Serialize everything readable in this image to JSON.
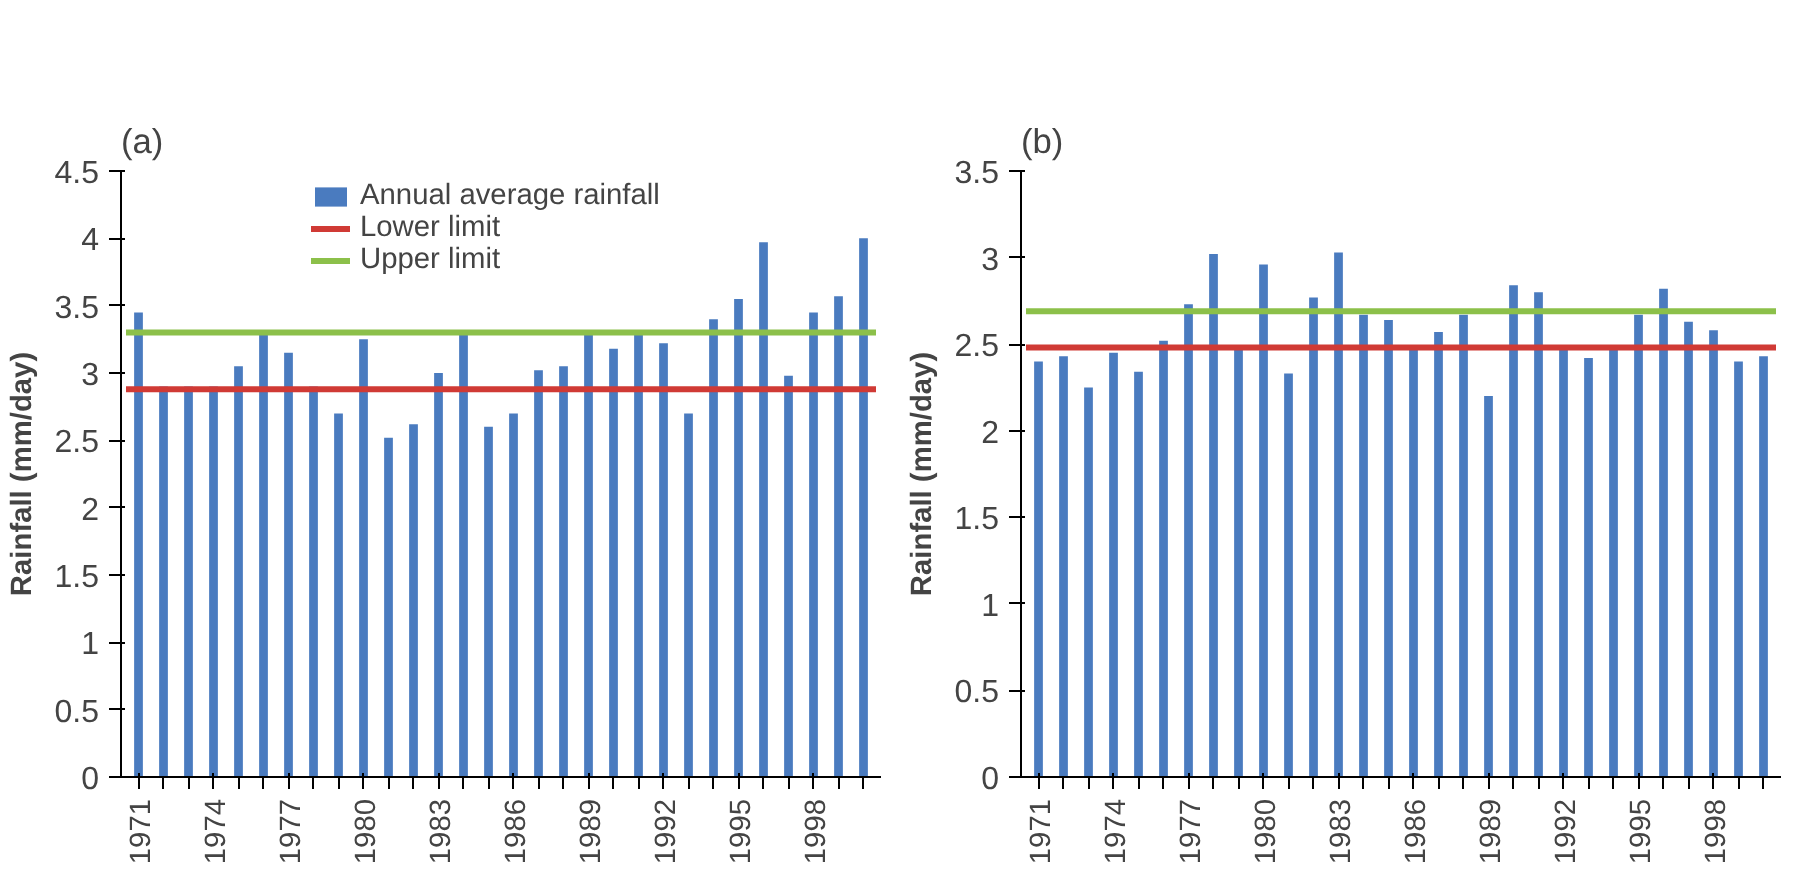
{
  "chart_data": [
    {
      "type": "bar",
      "title": "(a)",
      "ylabel": "Rainfall (mm/day)",
      "categories": [
        "1971",
        null,
        null,
        "1974",
        null,
        null,
        "1977",
        null,
        null,
        "1980",
        null,
        null,
        "1983",
        null,
        null,
        "1986",
        null,
        null,
        "1989",
        null,
        null,
        "1992",
        null,
        null,
        "1995",
        null,
        null,
        "1998",
        null,
        null
      ],
      "series": [
        {
          "name": "Annual average rainfall",
          "color": "#4a7bbf",
          "values": [
            3.45,
            2.9,
            2.9,
            2.9,
            3.05,
            3.3,
            3.15,
            2.9,
            2.7,
            3.25,
            2.52,
            2.62,
            3.0,
            3.3,
            2.6,
            2.7,
            3.02,
            3.05,
            3.3,
            3.18,
            3.3,
            3.22,
            2.7,
            3.4,
            3.55,
            3.97,
            2.98,
            3.45,
            3.57,
            4.0
          ]
        }
      ],
      "ref_lines": [
        {
          "axis": "y",
          "value": 2.88,
          "label": "Lower limit",
          "color": "#d03a35"
        },
        {
          "axis": "y",
          "value": 3.3,
          "label": "Upper limit",
          "color": "#8cc04a"
        }
      ],
      "ylim": [
        0,
        4.5
      ],
      "yticks": [
        0,
        0.5,
        1,
        1.5,
        2,
        2.5,
        3,
        3.5,
        4,
        4.5
      ],
      "grid": false,
      "legend": "top right"
    },
    {
      "type": "bar",
      "title": "(b)",
      "ylabel": "Rainfall (mm/day)",
      "categories": [
        "1971",
        null,
        null,
        "1974",
        null,
        null,
        "1977",
        null,
        null,
        "1980",
        null,
        null,
        "1983",
        null,
        null,
        "1986",
        null,
        null,
        "1989",
        null,
        null,
        "1992",
        null,
        null,
        "1995",
        null,
        null,
        "1998",
        null,
        null
      ],
      "series": [
        {
          "color": "#4a7bbf",
          "values": [
            2.4,
            2.43,
            2.25,
            2.45,
            2.34,
            2.52,
            2.73,
            3.02,
            2.47,
            2.96,
            2.33,
            2.77,
            3.03,
            2.67,
            2.64,
            2.47,
            2.57,
            2.67,
            2.2,
            2.84,
            2.8,
            2.47,
            2.42,
            2.47,
            2.67,
            2.82,
            2.63,
            2.58,
            2.4,
            2.43
          ]
        }
      ],
      "ref_lines": [
        {
          "axis": "y",
          "value": 2.48,
          "color": "#d03a35"
        },
        {
          "axis": "y",
          "value": 2.69,
          "color": "#8cc04a"
        }
      ],
      "ylim": [
        0,
        3.5
      ],
      "yticks": [
        0,
        0.5,
        1,
        1.5,
        2,
        2.5,
        3,
        3.5
      ],
      "grid": false,
      "legend": false
    }
  ]
}
